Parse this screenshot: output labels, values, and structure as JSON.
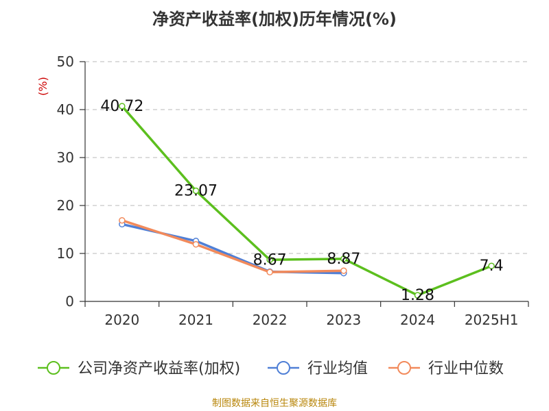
{
  "title": "净资产收益率(加权)历年情况(%)",
  "footer": "制图数据来自恒生聚源数据库",
  "chart_data": {
    "type": "line",
    "title": "净资产收益率(加权)历年情况(%)",
    "ylabel": "(%)",
    "xlabel": "",
    "categories": [
      "2020",
      "2021",
      "2022",
      "2023",
      "2024",
      "2025H1"
    ],
    "ylim": [
      0,
      50
    ],
    "yticks": [
      0,
      10,
      20,
      30,
      40,
      50
    ],
    "grid": true,
    "legend_position": "bottom",
    "series": [
      {
        "name": "公司净资产收益率(加权)",
        "color": "#5cbf1e",
        "values": [
          40.72,
          23.07,
          8.67,
          8.87,
          1.28,
          7.4
        ],
        "labels": [
          "40.72",
          "23.07",
          "8.67",
          "8.87",
          "1.28",
          "7.4"
        ]
      },
      {
        "name": "行业均值",
        "color": "#4f7fd6",
        "values": [
          16.1,
          12.6,
          6.2,
          5.9,
          null,
          null
        ]
      },
      {
        "name": "行业中位数",
        "color": "#f28a5b",
        "values": [
          16.9,
          11.9,
          6.1,
          6.4,
          null,
          null
        ]
      }
    ]
  }
}
